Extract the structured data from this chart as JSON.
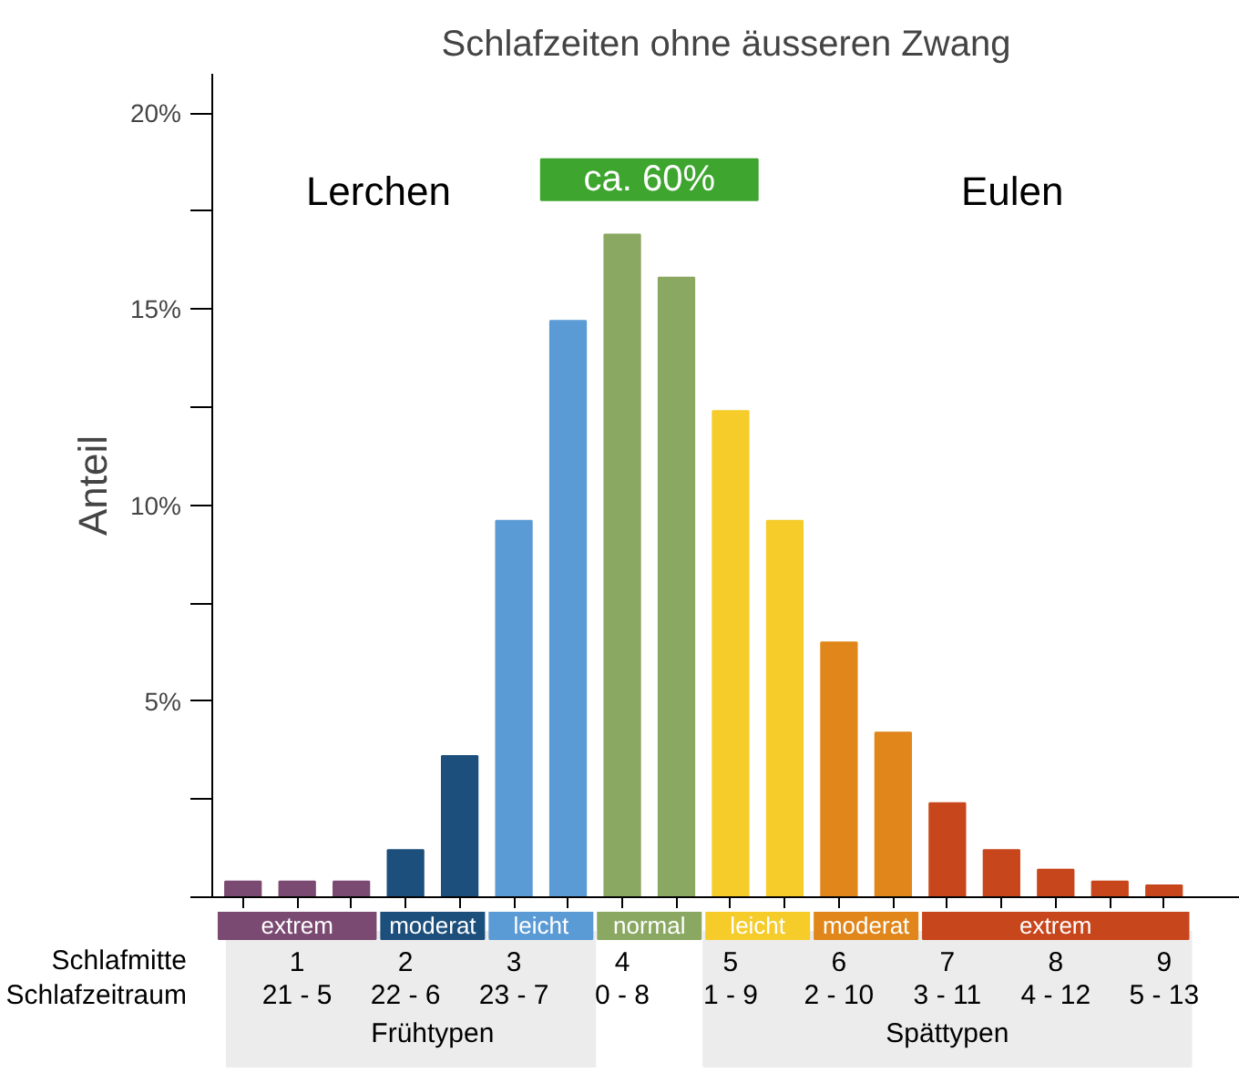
{
  "chart_data": {
    "type": "bar",
    "title": "Schlafzeiten ohne äusseren Zwang",
    "ylabel": "Anteil",
    "categories": [
      null,
      "1",
      null,
      "2",
      null,
      "3",
      null,
      "4",
      null,
      "5",
      null,
      "6",
      null,
      "7",
      null,
      "8",
      null,
      "9"
    ],
    "values": [
      0.4,
      0.4,
      0.4,
      1.2,
      3.6,
      9.6,
      14.7,
      16.9,
      15.8,
      12.4,
      9.6,
      6.5,
      4.2,
      2.4,
      1.2,
      0.7,
      0.4,
      0.3
    ],
    "colors": [
      "#7b4a72",
      "#7b4a72",
      "#7b4a72",
      "#1d4f7c",
      "#1d4f7c",
      "#5b9bd5",
      "#5b9bd5",
      "#8aa862",
      "#8aa862",
      "#f5cc2a",
      "#f5cc2a",
      "#e0861a",
      "#e0861a",
      "#c8461c",
      "#c8461c",
      "#c8461c",
      "#c8461c",
      "#c8461c"
    ],
    "ylim": [
      0,
      21
    ],
    "yticks": [
      {
        "value": 0,
        "label": null
      },
      {
        "value": 2.5,
        "label": null
      },
      {
        "value": 5,
        "label": "5%"
      },
      {
        "value": 7.5,
        "label": null
      },
      {
        "value": 10,
        "label": "10%"
      },
      {
        "value": 12.5,
        "label": null
      },
      {
        "value": 15,
        "label": "15%"
      },
      {
        "value": 17.5,
        "label": null
      },
      {
        "value": 20,
        "label": "20%"
      }
    ],
    "grid": false,
    "annotations": [
      "Lerchen",
      "Eulen",
      "ca. 60%",
      "extrem",
      "moderat",
      "leicht",
      "normal",
      "leicht",
      "moderat",
      "extrem",
      "Schlafmitte",
      "Schlafzeitraum",
      "21 - 5",
      "22 - 6",
      "23 - 7",
      "0 - 8",
      "1 - 9",
      "2 - 10",
      "3 - 11",
      "4 - 12",
      "5 - 13",
      "Frühtypen",
      "Spättypen"
    ]
  }
}
